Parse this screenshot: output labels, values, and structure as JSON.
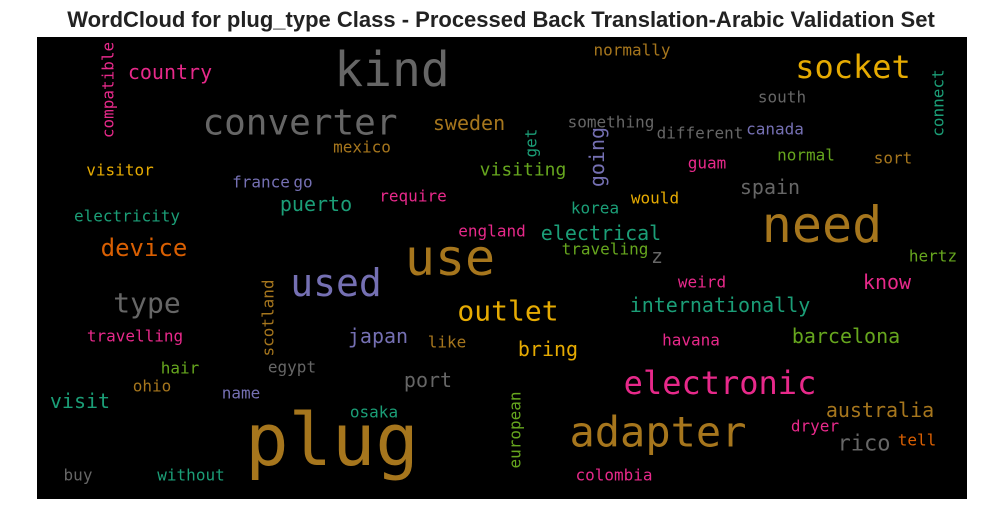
{
  "chart_data": {
    "type": "wordcloud",
    "title": "WordCloud for plug_type Class - Processed Back Translation-Arabic Validation Set",
    "background": "#000000",
    "words": [
      {
        "text": "kind",
        "color": "#666666"
      },
      {
        "text": "plug",
        "color": "#a6761d"
      },
      {
        "text": "use",
        "color": "#a6761d"
      },
      {
        "text": "need",
        "color": "#a6761d"
      },
      {
        "text": "adapter",
        "color": "#a6761d"
      },
      {
        "text": "converter",
        "color": "#666666"
      },
      {
        "text": "used",
        "color": "#7570b3"
      },
      {
        "text": "electronic",
        "color": "#e7298a"
      },
      {
        "text": "socket",
        "color": "#e6ab02"
      },
      {
        "text": "outlet",
        "color": "#e6ab02"
      },
      {
        "text": "type",
        "color": "#666666"
      },
      {
        "text": "device",
        "color": "#d95f02"
      },
      {
        "text": "country",
        "color": "#e7298a"
      },
      {
        "text": "compatible",
        "color": "#e7298a"
      },
      {
        "text": "normally",
        "color": "#a6761d"
      },
      {
        "text": "south",
        "color": "#666666"
      },
      {
        "text": "connect",
        "color": "#1b9e77"
      },
      {
        "text": "something",
        "color": "#666666"
      },
      {
        "text": "different",
        "color": "#666666"
      },
      {
        "text": "canada",
        "color": "#7570b3"
      },
      {
        "text": "sweden",
        "color": "#a6761d"
      },
      {
        "text": "mexico",
        "color": "#a6761d"
      },
      {
        "text": "get",
        "color": "#1b9e77"
      },
      {
        "text": "going",
        "color": "#7570b3"
      },
      {
        "text": "guam",
        "color": "#e7298a"
      },
      {
        "text": "normal",
        "color": "#66a61e"
      },
      {
        "text": "sort",
        "color": "#a6761d"
      },
      {
        "text": "visitor",
        "color": "#e6ab02"
      },
      {
        "text": "visiting",
        "color": "#66a61e"
      },
      {
        "text": "france",
        "color": "#7570b3"
      },
      {
        "text": "go",
        "color": "#7570b3"
      },
      {
        "text": "spain",
        "color": "#666666"
      },
      {
        "text": "require",
        "color": "#e7298a"
      },
      {
        "text": "would",
        "color": "#e6ab02"
      },
      {
        "text": "puerto",
        "color": "#1b9e77"
      },
      {
        "text": "korea",
        "color": "#1b9e77"
      },
      {
        "text": "electricity",
        "color": "#1b9e77"
      },
      {
        "text": "england",
        "color": "#e7298a"
      },
      {
        "text": "electrical",
        "color": "#1b9e77"
      },
      {
        "text": "traveling",
        "color": "#66a61e"
      },
      {
        "text": "z",
        "color": "#666666"
      },
      {
        "text": "hertz",
        "color": "#66a61e"
      },
      {
        "text": "weird",
        "color": "#e7298a"
      },
      {
        "text": "know",
        "color": "#e7298a"
      },
      {
        "text": "scotland",
        "color": "#a6761d"
      },
      {
        "text": "internationally",
        "color": "#1b9e77"
      },
      {
        "text": "japan",
        "color": "#7570b3"
      },
      {
        "text": "barcelona",
        "color": "#66a61e"
      },
      {
        "text": "travelling",
        "color": "#e7298a"
      },
      {
        "text": "like",
        "color": "#a6761d"
      },
      {
        "text": "havana",
        "color": "#e7298a"
      },
      {
        "text": "bring",
        "color": "#e6ab02"
      },
      {
        "text": "hair",
        "color": "#66a61e"
      },
      {
        "text": "egypt",
        "color": "#666666"
      },
      {
        "text": "port",
        "color": "#666666"
      },
      {
        "text": "ohio",
        "color": "#a6761d"
      },
      {
        "text": "name",
        "color": "#7570b3"
      },
      {
        "text": "visit",
        "color": "#1b9e77"
      },
      {
        "text": "european",
        "color": "#66a61e"
      },
      {
        "text": "australia",
        "color": "#a6761d"
      },
      {
        "text": "osaka",
        "color": "#1b9e77"
      },
      {
        "text": "dryer",
        "color": "#e7298a"
      },
      {
        "text": "rico",
        "color": "#666666"
      },
      {
        "text": "tell",
        "color": "#d95f02"
      },
      {
        "text": "buy",
        "color": "#666666"
      },
      {
        "text": "without",
        "color": "#1b9e77"
      },
      {
        "text": "colombia",
        "color": "#e7298a"
      }
    ]
  }
}
